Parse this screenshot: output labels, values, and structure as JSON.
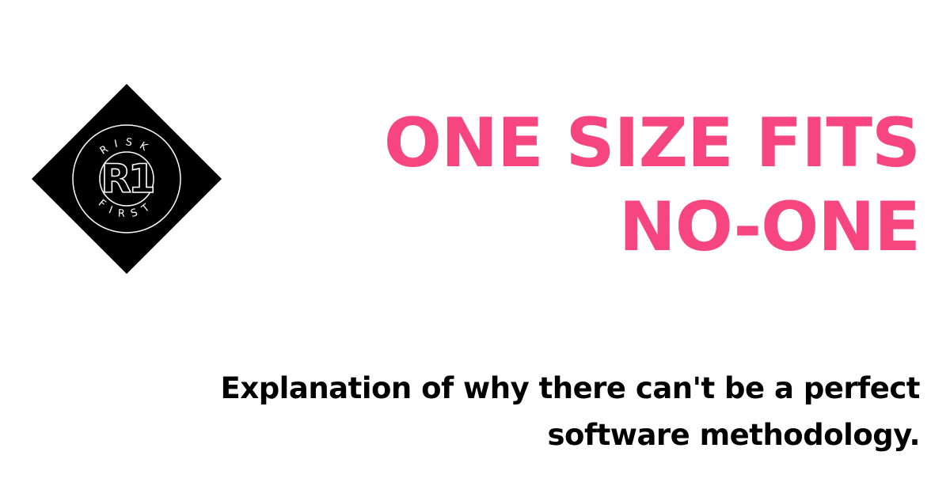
{
  "logo": {
    "top_text": "RISK",
    "bottom_text": "FIRST",
    "monogram": "R1",
    "colors": {
      "background": "#000000",
      "line": "#ffffff"
    }
  },
  "title": {
    "line1": "ONE SIZE FITS",
    "line2": "NO-ONE",
    "color": "#f7467f"
  },
  "subtitle": {
    "line1": "Explanation of why there can't be a perfect",
    "line2": "software methodology.",
    "color": "#000000"
  }
}
